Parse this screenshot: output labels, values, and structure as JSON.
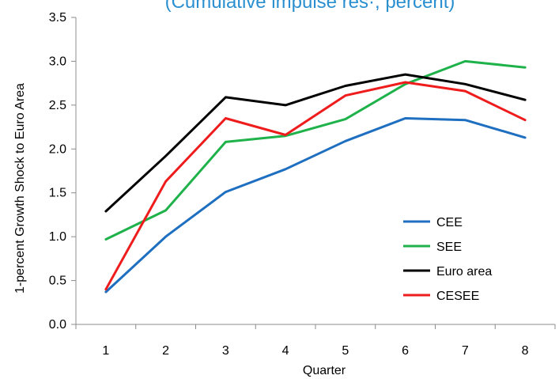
{
  "chart_data": {
    "type": "line",
    "title": "(Cumulative impulse res·, percent)",
    "xlabel": "Quarter",
    "ylabel": "1-percent Growth Shock to  Euro Area",
    "categories": [
      "1",
      "2",
      "3",
      "4",
      "5",
      "6",
      "7",
      "8"
    ],
    "ylim": [
      0.0,
      3.5
    ],
    "yticks": [
      "0.0",
      "0.5",
      "1.0",
      "1.5",
      "2.0",
      "2.5",
      "3.0",
      "3.5"
    ],
    "grid": false,
    "legend_position": "bottom-right",
    "series": [
      {
        "name": "CEE",
        "color": "#1f6fc0",
        "values": [
          0.37,
          1.0,
          1.51,
          1.77,
          2.09,
          2.35,
          2.33,
          2.13
        ]
      },
      {
        "name": "SEE",
        "color": "#1fb24a",
        "values": [
          0.97,
          1.3,
          2.08,
          2.15,
          2.34,
          2.74,
          3.0,
          2.93
        ]
      },
      {
        "name": "Euro area",
        "color": "#000000",
        "values": [
          1.29,
          1.92,
          2.59,
          2.5,
          2.72,
          2.85,
          2.74,
          2.56
        ]
      },
      {
        "name": "CESEE",
        "color": "#ee1c1c",
        "values": [
          0.4,
          1.63,
          2.35,
          2.16,
          2.61,
          2.76,
          2.66,
          2.33
        ]
      }
    ]
  }
}
